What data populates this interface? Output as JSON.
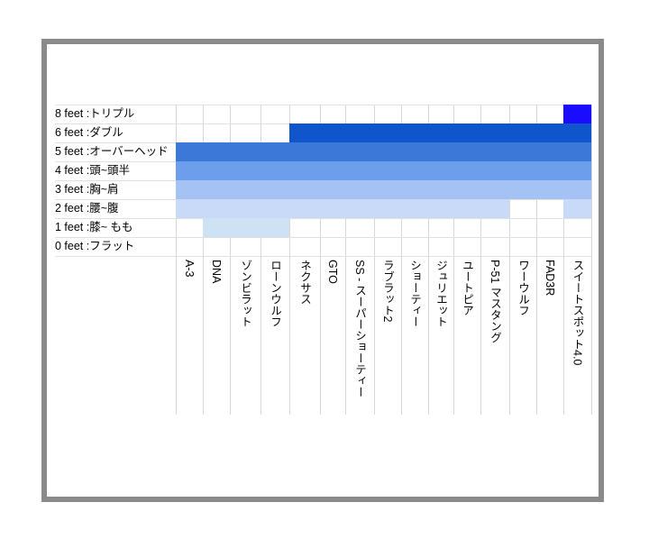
{
  "chart_data": {
    "type": "heatmap",
    "title": "",
    "rows": [
      "8 feet :トリプル",
      "6 feet :ダブル",
      "5 feet :オーバーヘッド",
      "4 feet :頭~頭半",
      "3 feet :胸~肩",
      "2 feet :腰~腹",
      "1 feet :膝~ もも",
      "0 feet :フラット"
    ],
    "columns": [
      "A-3",
      "DNA",
      "ゾンビラット",
      "ローンウルフ",
      "ネクサス",
      "GTO",
      "SS - スーパーショーティー",
      "ラブラット2",
      "ショーティー",
      "ジュリエット",
      "ユートピア",
      "P-51 マスタング",
      "ワーウルフ",
      "FAD3R",
      "スイートスポット4.0"
    ],
    "series": [
      {
        "row": "8 feet :トリプル",
        "color": "#1a0dff",
        "values": [
          0,
          0,
          0,
          0,
          0,
          0,
          0,
          0,
          0,
          0,
          0,
          0,
          0,
          0,
          1
        ]
      },
      {
        "row": "6 feet :ダブル",
        "color": "#1155cc",
        "values": [
          0,
          0,
          0,
          0,
          1,
          1,
          1,
          1,
          1,
          1,
          1,
          1,
          1,
          1,
          1
        ]
      },
      {
        "row": "5 feet :オーバーヘッド",
        "color": "#3c78d8",
        "values": [
          1,
          1,
          1,
          1,
          1,
          1,
          1,
          1,
          1,
          1,
          1,
          1,
          1,
          1,
          1
        ]
      },
      {
        "row": "4 feet :頭~頭半",
        "color": "#6d9eeb",
        "values": [
          1,
          1,
          1,
          1,
          1,
          1,
          1,
          1,
          1,
          1,
          1,
          1,
          1,
          1,
          1
        ]
      },
      {
        "row": "3 feet :胸~肩",
        "color": "#a4c2f4",
        "values": [
          1,
          1,
          1,
          1,
          1,
          1,
          1,
          1,
          1,
          1,
          1,
          1,
          1,
          1,
          1
        ]
      },
      {
        "row": "2 feet :腰~腹",
        "color": "#c9daf8",
        "values": [
          1,
          1,
          1,
          1,
          1,
          1,
          1,
          1,
          1,
          1,
          1,
          1,
          0,
          0,
          1
        ]
      },
      {
        "row": "1 feet :膝~ もも",
        "color": "#cfe2f3",
        "values": [
          0,
          1,
          1,
          1,
          0,
          0,
          0,
          0,
          0,
          0,
          0,
          0,
          0,
          0,
          0
        ]
      },
      {
        "row": "0 feet :フラット",
        "color": "#ffffff",
        "values": [
          0,
          0,
          0,
          0,
          0,
          0,
          0,
          0,
          0,
          0,
          0,
          0,
          0,
          0,
          0
        ]
      }
    ]
  }
}
